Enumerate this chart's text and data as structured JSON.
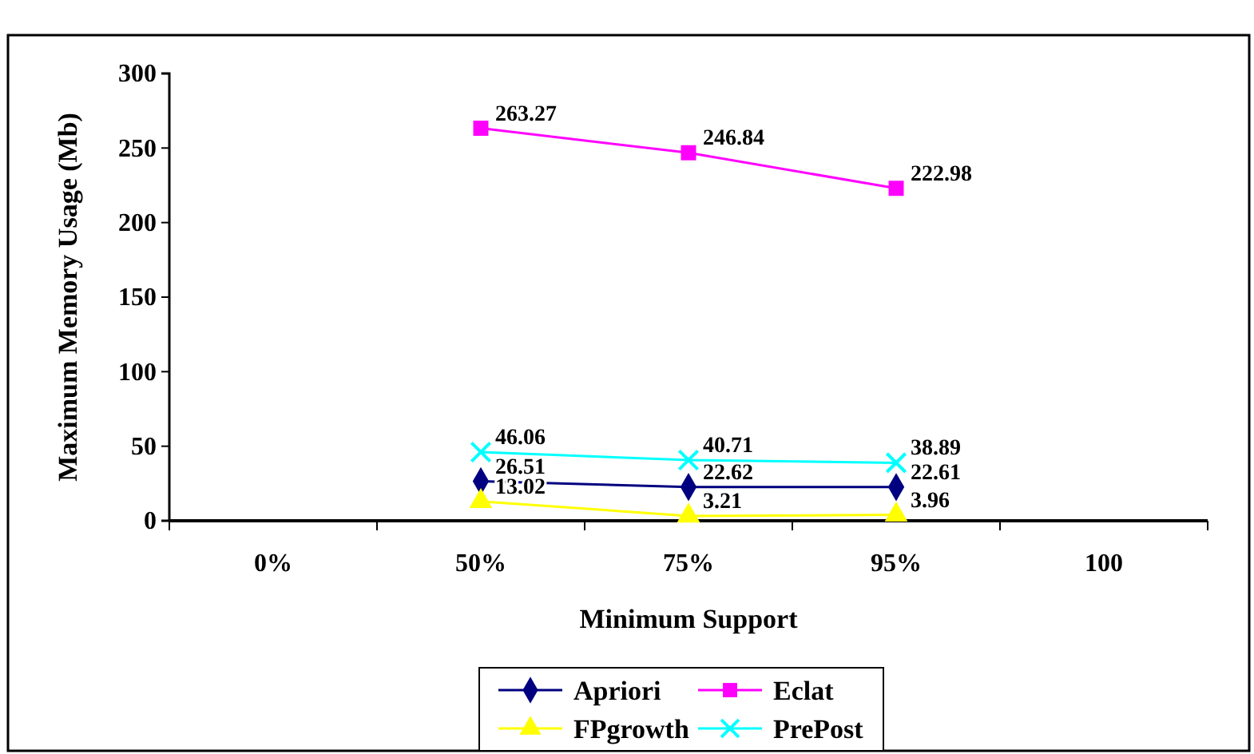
{
  "chart_data": {
    "type": "line",
    "xlabel": "Minimum Support",
    "ylabel": "Maximum Memory Usage (Mb)",
    "categories": [
      "0%",
      "50%",
      "75%",
      "95%",
      "100"
    ],
    "series": [
      {
        "name": "Apriori",
        "color": "#000080",
        "marker": "diamond",
        "values": [
          null,
          26.51,
          22.62,
          22.61,
          null
        ]
      },
      {
        "name": "Eclat",
        "color": "#ff00ff",
        "marker": "square",
        "values": [
          null,
          263.27,
          246.84,
          222.98,
          null
        ]
      },
      {
        "name": "FPgrowth",
        "color": "#ffff00",
        "marker": "triangle",
        "values": [
          null,
          13.02,
          3.21,
          3.96,
          null
        ]
      },
      {
        "name": "PrePost",
        "color": "#00ffff",
        "marker": "cross",
        "values": [
          null,
          46.06,
          40.71,
          38.89,
          null
        ]
      }
    ],
    "ylim": [
      0,
      300
    ],
    "yticks": [
      0,
      50,
      100,
      150,
      200,
      250,
      300
    ],
    "data_labels": true,
    "legend": "bottom",
    "grid": false
  }
}
